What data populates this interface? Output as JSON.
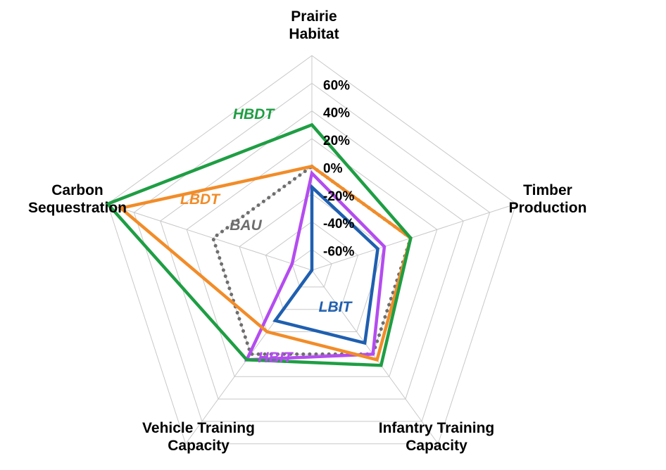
{
  "chart_data": {
    "type": "radar",
    "axes": [
      [
        "Prairie",
        "Habitat"
      ],
      [
        "Timber",
        "Production"
      ],
      [
        "Infantry Training",
        "Capacity"
      ],
      [
        "Vehicle Training",
        "Capacity"
      ],
      [
        "Carbon",
        "Sequestration"
      ]
    ],
    "ticks": [
      "60%",
      "40%",
      "20%",
      "0%",
      "-20%",
      "-40%",
      "-60%"
    ],
    "tick_values": [
      60,
      40,
      20,
      0,
      -20,
      -40,
      -60
    ],
    "rlim": [
      -75,
      80
    ],
    "grid": true,
    "series": [
      {
        "name": "HBDT",
        "color": "#1e9e43",
        "style": "solid",
        "values": [
          30,
          0,
          10,
          5,
          80
        ]
      },
      {
        "name": "LBDT",
        "color": "#f28c28",
        "style": "solid",
        "values": [
          0,
          0,
          5,
          -20,
          70
        ]
      },
      {
        "name": "BAU",
        "color": "#6e6e6e",
        "style": "dotted",
        "values": [
          0,
          0,
          0,
          0,
          0
        ]
      },
      {
        "name": "HBIT",
        "color": "#b44cf0",
        "style": "solid",
        "values": [
          -5,
          -20,
          0,
          5,
          -60
        ]
      },
      {
        "name": "LBIT",
        "color": "#1f5fb0",
        "style": "solid",
        "values": [
          -15,
          -25,
          -10,
          -30,
          -75
        ]
      }
    ]
  }
}
